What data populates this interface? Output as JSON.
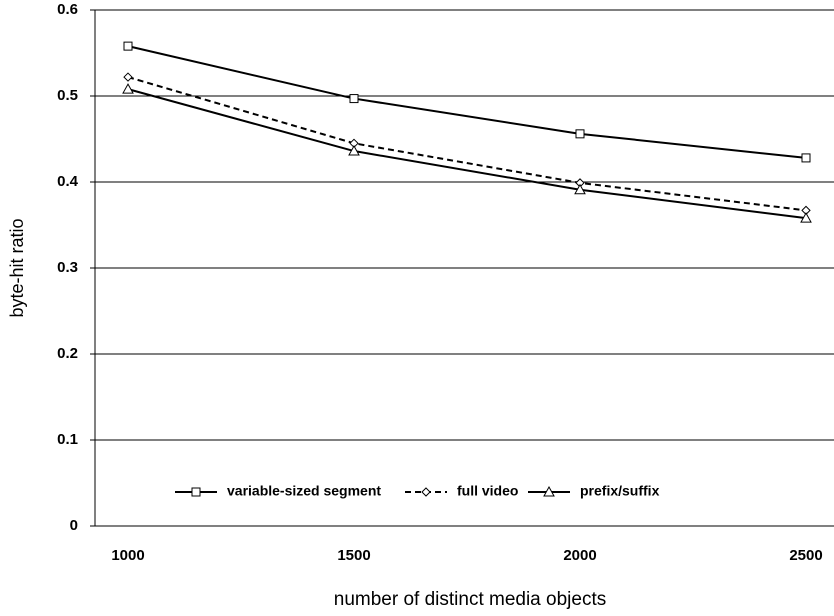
{
  "chart_data": {
    "type": "line",
    "x_label": "number of distinct media objects",
    "y_label": "byte-hit ratio",
    "categories": [
      "1000",
      "1500",
      "2000",
      "2500"
    ],
    "series": [
      {
        "name": "variable-sized segment",
        "color": "#000000",
        "dash": "solid",
        "marker": "square",
        "values": [
          0.558,
          0.497,
          0.456,
          0.428
        ]
      },
      {
        "name": "full video",
        "color": "#000000",
        "dash": "dashed",
        "marker": "diamond",
        "values": [
          0.522,
          0.445,
          0.399,
          0.367
        ]
      },
      {
        "name": "prefix/suffix",
        "color": "#000000",
        "dash": "solid",
        "marker": "triangle",
        "values": [
          0.508,
          0.436,
          0.391,
          0.358
        ]
      }
    ],
    "ylim": [
      0,
      0.6
    ],
    "yticks": [
      0,
      0.1,
      0.2,
      0.3,
      0.4,
      0.5,
      0.6
    ],
    "grid": true,
    "legend": "bottom"
  }
}
